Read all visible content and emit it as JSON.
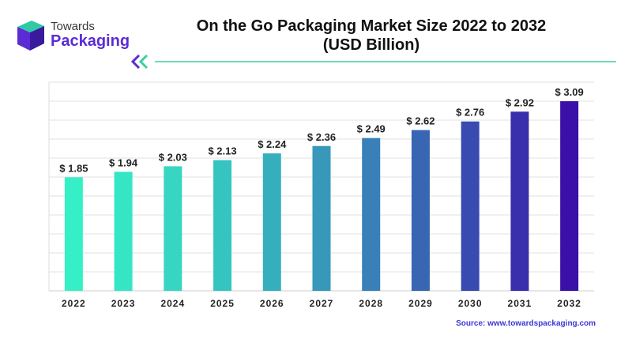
{
  "brand": {
    "top": "Towards",
    "bottom": "Packaging"
  },
  "title_line1": "On the Go Packaging Market Size 2022 to 2032",
  "title_line2": "(USD Billion)",
  "source": "Source: www.towardspackaging.com",
  "colors": {
    "start": "#35f0c6",
    "end": "#3a10a8",
    "grid": "#d6d6d6",
    "accent": "#3ccf9f"
  },
  "chart_data": {
    "type": "bar",
    "title": "On the Go Packaging Market Size 2022 to 2032 (USD Billion)",
    "categories": [
      "2022",
      "2023",
      "2024",
      "2025",
      "2026",
      "2027",
      "2028",
      "2029",
      "2030",
      "2031",
      "2032"
    ],
    "values": [
      1.85,
      1.94,
      2.03,
      2.13,
      2.24,
      2.36,
      2.49,
      2.62,
      2.76,
      2.92,
      3.09
    ],
    "value_labels": [
      "$ 1.85",
      "$ 1.94",
      "$ 2.03",
      "$ 2.13",
      "$ 2.24",
      "$ 2.36",
      "$ 2.49",
      "$ 2.62",
      "$ 2.76",
      "$ 2.92",
      "$ 3.09"
    ],
    "xlabel": "",
    "ylabel": "",
    "ylim": [
      0,
      3.4
    ],
    "grid": true
  }
}
